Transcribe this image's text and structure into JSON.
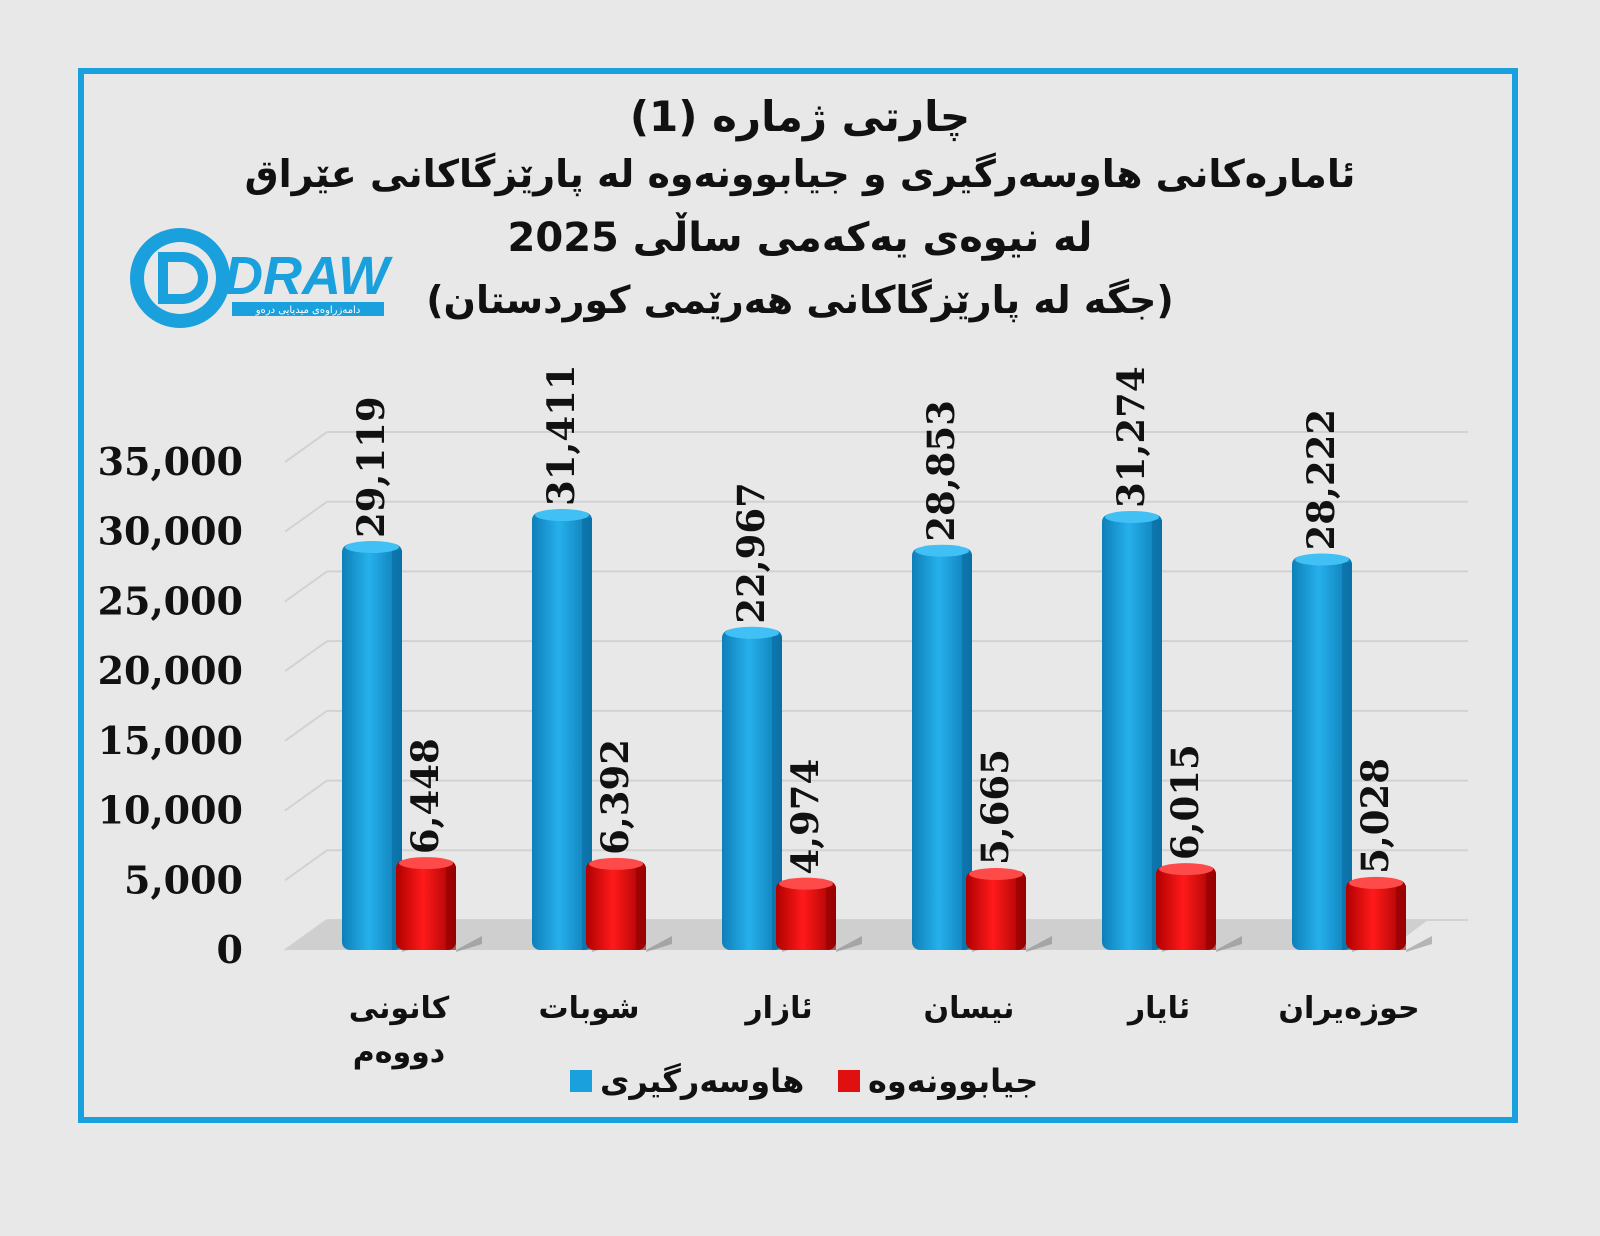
{
  "title": {
    "line1": "چارتی ژمارە (1)",
    "line2": "ئامارەکانی هاوسەرگیری و جیابوونەوە لە پارێزگاکانی عێراق",
    "line3": "لە نیوەی یەکەمی ساڵی 2025",
    "line4": "(جگە لە پارێزگاکانی هەرێمی کوردستان)"
  },
  "logo": {
    "text": "DRAW",
    "subtext": "دامەزراوەی میدیایی درەو"
  },
  "colors": {
    "frame": "#1aa0dc",
    "marriage": "#1aa0dc",
    "divorce": "#e01010",
    "background": "#e8e8e8"
  },
  "chart_data": {
    "type": "bar",
    "categories": [
      "کانونی دووەم",
      "شوبات",
      "ئازار",
      "نیسان",
      "ئایار",
      "حوزەیران"
    ],
    "series": [
      {
        "name": "هاوسەرگیری",
        "values": [
          29119,
          31411,
          22967,
          28853,
          31274,
          28222
        ],
        "labels": [
          "29,119",
          "31,411",
          "22,967",
          "28,853",
          "31,274",
          "28,222"
        ]
      },
      {
        "name": "جیابوونەوە",
        "values": [
          6448,
          6392,
          4974,
          5665,
          6015,
          5028
        ],
        "labels": [
          "6,448",
          "6,392",
          "4,974",
          "5,665",
          "6,015",
          "5,028"
        ]
      }
    ],
    "yticks": [
      "0",
      "5,000",
      "10,000",
      "15,000",
      "20,000",
      "25,000",
      "30,000",
      "35,000"
    ],
    "ylim": [
      0,
      35000
    ],
    "grid": true,
    "legend": "bottom"
  }
}
